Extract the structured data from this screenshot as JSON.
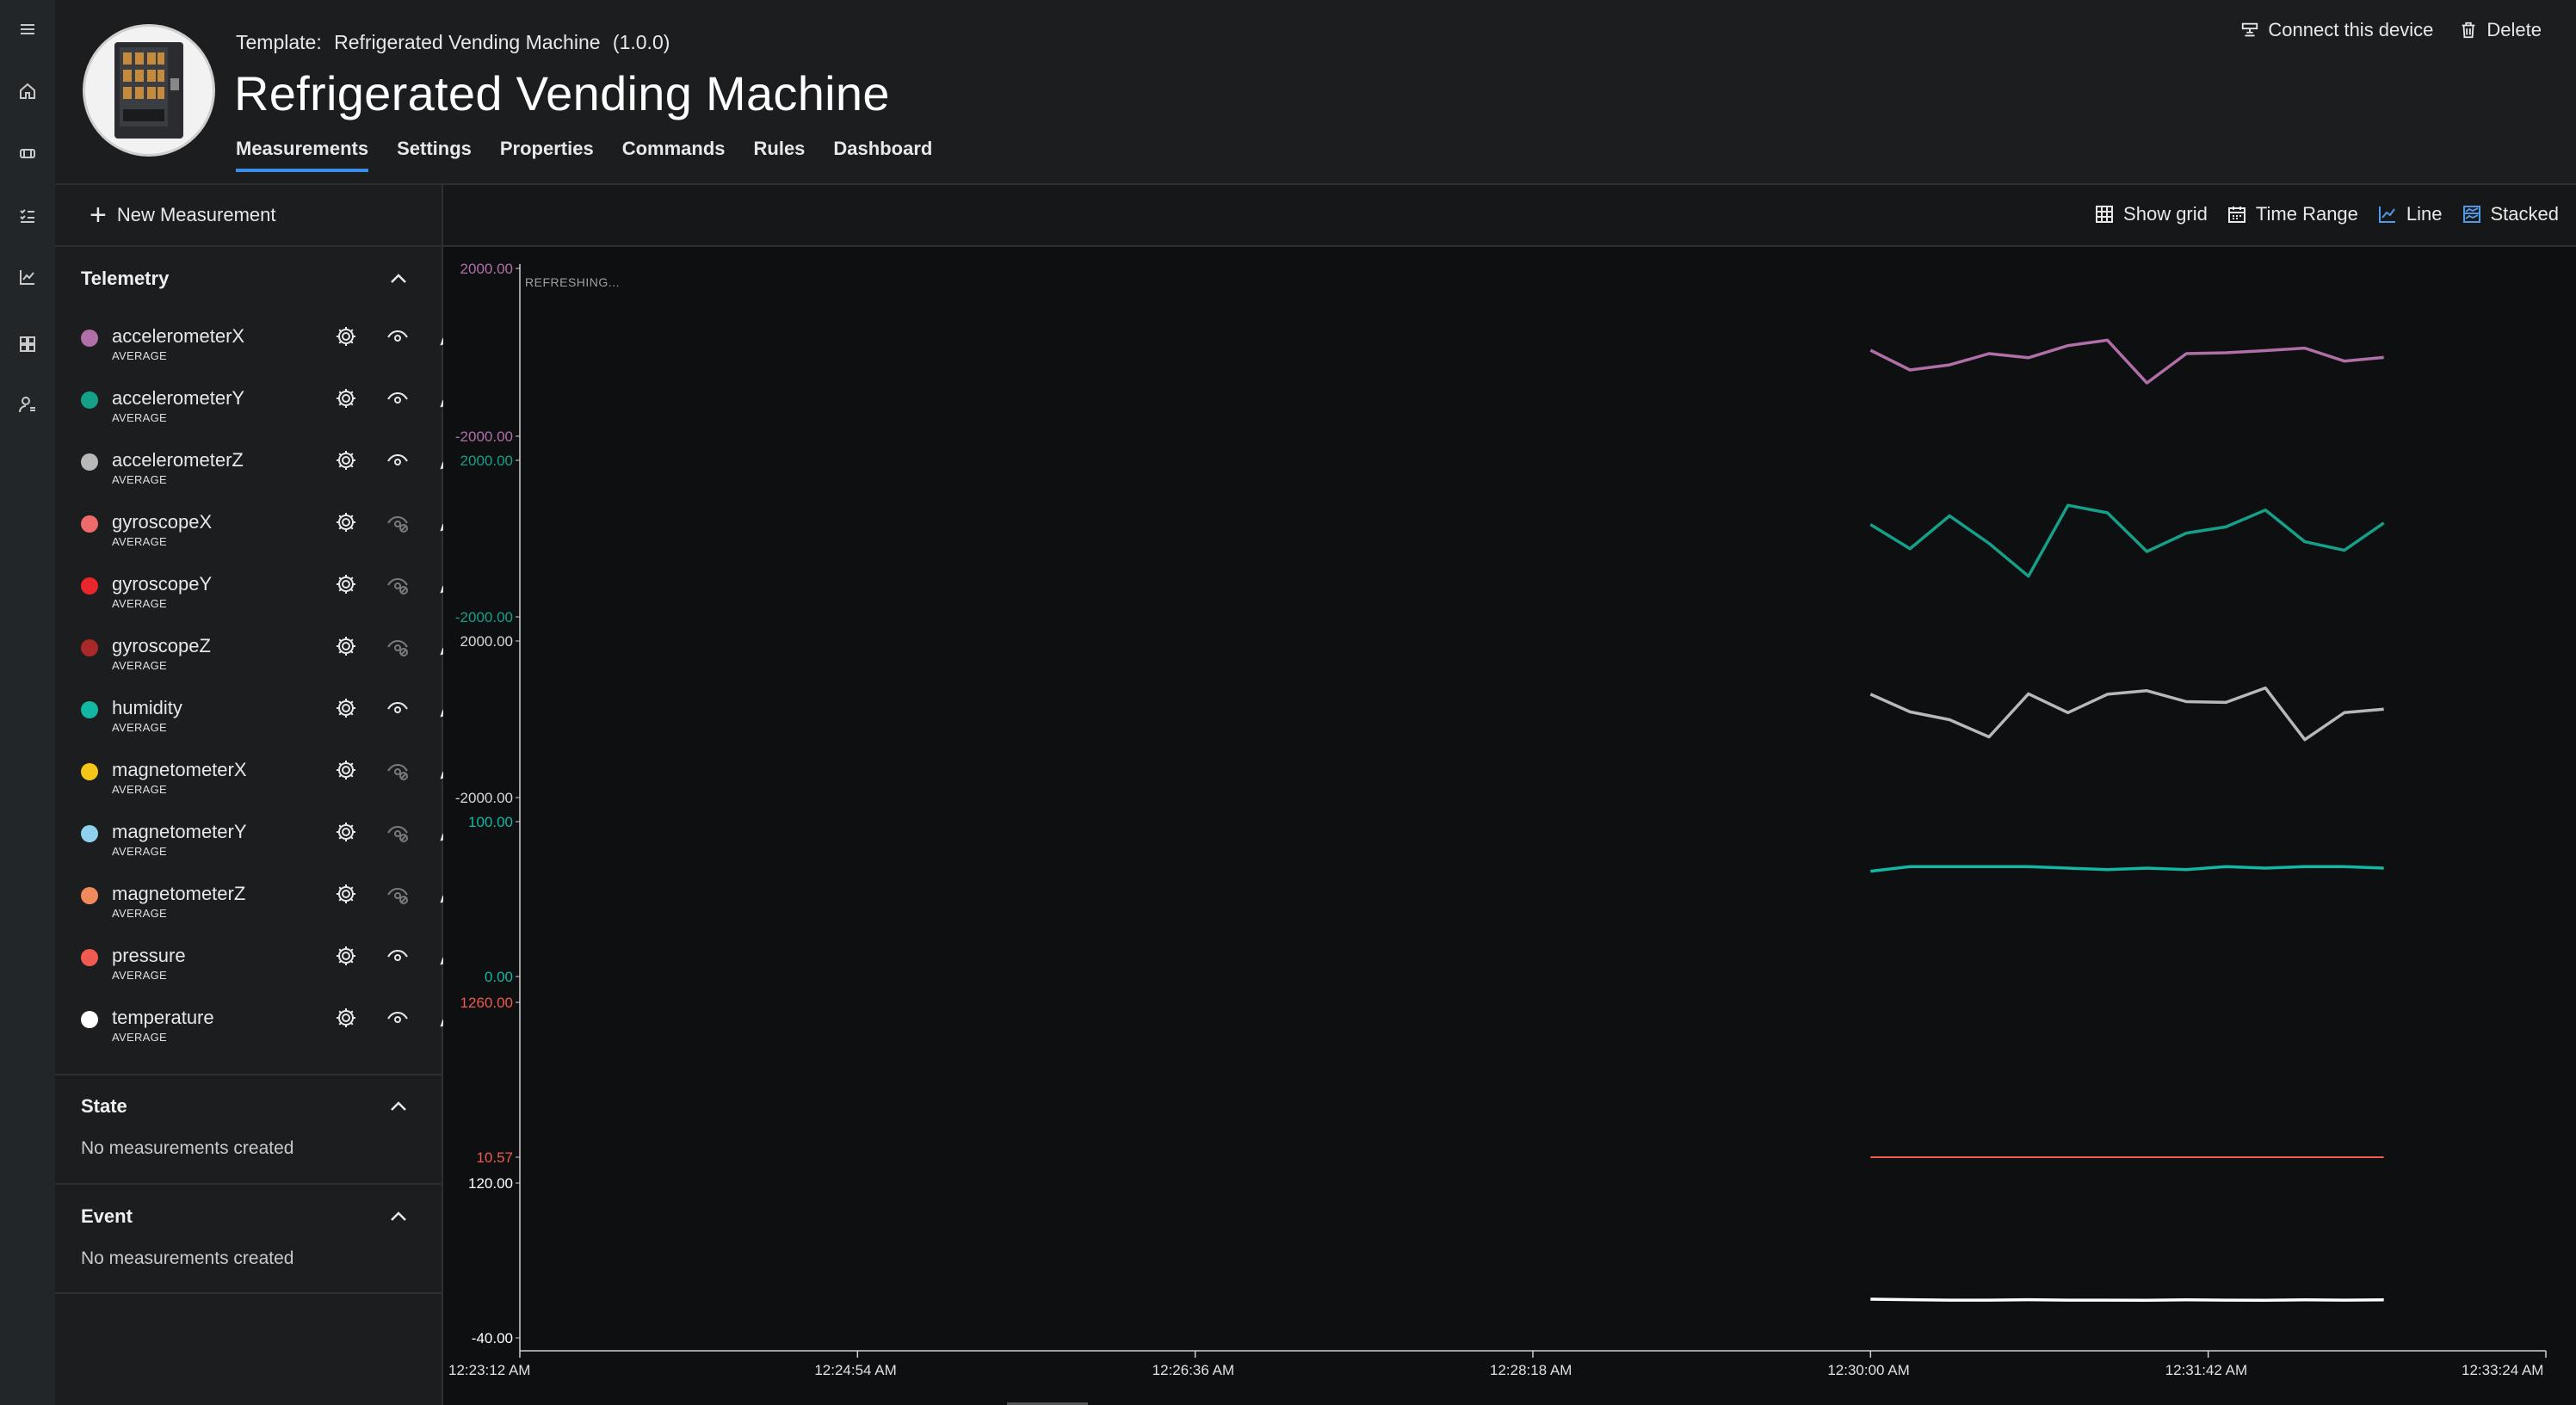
{
  "nav": {
    "items": [
      {
        "name": "menu-icon"
      },
      {
        "name": "home-icon"
      },
      {
        "name": "devices-icon"
      },
      {
        "name": "rules-icon"
      },
      {
        "name": "analytics-icon"
      },
      {
        "name": "dashboard-icon"
      },
      {
        "name": "admin-icon"
      }
    ]
  },
  "header": {
    "template_label": "Template:",
    "template_name": "Refrigerated Vending Machine",
    "template_version": "(1.0.0)",
    "title": "Refrigerated Vending Machine",
    "tabs": [
      {
        "label": "Measurements",
        "active": true
      },
      {
        "label": "Settings"
      },
      {
        "label": "Properties"
      },
      {
        "label": "Commands"
      },
      {
        "label": "Rules"
      },
      {
        "label": "Dashboard"
      }
    ],
    "connect_label": "Connect this device",
    "delete_label": "Delete"
  },
  "left_panel": {
    "new_measurement_label": "New Measurement",
    "telemetry_title": "Telemetry",
    "telemetry": [
      {
        "name": "accelerometerX",
        "agg": "AVERAGE",
        "color": "#b06fa8",
        "visible": true
      },
      {
        "name": "accelerometerY",
        "agg": "AVERAGE",
        "color": "#15a08a",
        "visible": true
      },
      {
        "name": "accelerometerZ",
        "agg": "AVERAGE",
        "color": "#b8b8b8",
        "visible": true
      },
      {
        "name": "gyroscopeX",
        "agg": "AVERAGE",
        "color": "#ef6b6b",
        "visible": false
      },
      {
        "name": "gyroscopeY",
        "agg": "AVERAGE",
        "color": "#e8262b",
        "visible": false
      },
      {
        "name": "gyroscopeZ",
        "agg": "AVERAGE",
        "color": "#a9282a",
        "visible": false
      },
      {
        "name": "humidity",
        "agg": "AVERAGE",
        "color": "#12b8a4",
        "visible": true
      },
      {
        "name": "magnetometerX",
        "agg": "AVERAGE",
        "color": "#f5c518",
        "visible": false
      },
      {
        "name": "magnetometerY",
        "agg": "AVERAGE",
        "color": "#8fd0ef",
        "visible": false
      },
      {
        "name": "magnetometerZ",
        "agg": "AVERAGE",
        "color": "#f08a5d",
        "visible": false
      },
      {
        "name": "pressure",
        "agg": "AVERAGE",
        "color": "#f05a4f",
        "visible": true
      },
      {
        "name": "temperature",
        "agg": "AVERAGE",
        "color": "#ffffff",
        "visible": true
      }
    ],
    "state_title": "State",
    "state_empty": "No measurements created",
    "event_title": "Event",
    "event_empty": "No measurements created"
  },
  "chart_toolbar": {
    "show_grid": "Show grid",
    "time_range": "Time Range",
    "line": "Line",
    "stacked": "Stacked"
  },
  "chart_data": {
    "type": "line",
    "status": "REFRESHING...",
    "x_ticks": [
      "12:23:12 AM",
      "12:24:54 AM",
      "12:26:36 AM",
      "12:28:18 AM",
      "12:30:00 AM",
      "12:31:42 AM",
      "12:33:24 AM"
    ],
    "x_range": [
      "12:23:12 AM",
      "12:33:24 AM"
    ],
    "x_points_range": [
      "12:30:00 AM",
      "12:32:45 AM"
    ],
    "series": [
      {
        "name": "accelerometerX",
        "color": "#b06fa8",
        "ylim": [
          -2000,
          2000
        ],
        "tick_labels": [
          "2000.00",
          "-2000.00"
        ],
        "values": [
          50,
          -420,
          -300,
          -30,
          -130,
          160,
          290,
          -730,
          -30,
          -10,
          40,
          100,
          -210,
          -120
        ]
      },
      {
        "name": "accelerometerY",
        "color": "#15a08a",
        "ylim": [
          -2000,
          2000
        ],
        "tick_labels": [
          "2000.00",
          "-2000.00"
        ],
        "values": [
          360,
          -260,
          580,
          -120,
          -960,
          850,
          660,
          -330,
          140,
          300,
          730,
          -80,
          -300,
          400
        ]
      },
      {
        "name": "accelerometerZ",
        "color": "#b8b8b8",
        "ylim": [
          -2000,
          2000
        ],
        "tick_labels": [
          "2000.00",
          "-2000.00"
        ],
        "values": [
          640,
          190,
          -10,
          -450,
          650,
          170,
          640,
          730,
          450,
          430,
          800,
          -520,
          170,
          260
        ]
      },
      {
        "name": "humidity",
        "color": "#12b8a4",
        "ylim": [
          0,
          100
        ],
        "tick_labels": [
          "100.00",
          "0.00"
        ],
        "values": [
          68,
          71,
          71,
          71,
          71,
          70,
          69,
          70,
          69,
          71,
          70,
          71,
          71,
          70
        ]
      },
      {
        "name": "pressure",
        "color": "#f05a4f",
        "ylim": [
          10.57,
          1260
        ],
        "tick_labels": [
          "1260.00",
          "10.57"
        ],
        "values": [
          10.57,
          10.57,
          10.57,
          10.57,
          10.57,
          10.57,
          10.57,
          10.57,
          10.57,
          10.57,
          10.57,
          10.57,
          10.57,
          10.57
        ]
      },
      {
        "name": "temperature",
        "color": "#ffffff",
        "ylim": [
          -40,
          120
        ],
        "tick_labels": [
          "120.00",
          "-40.00"
        ],
        "values": [
          0,
          -0.5,
          -1,
          -1,
          -0.5,
          -1,
          -1,
          -1.2,
          -0.7,
          -1,
          -1.2,
          -0.7,
          -1,
          -0.6
        ]
      }
    ]
  }
}
